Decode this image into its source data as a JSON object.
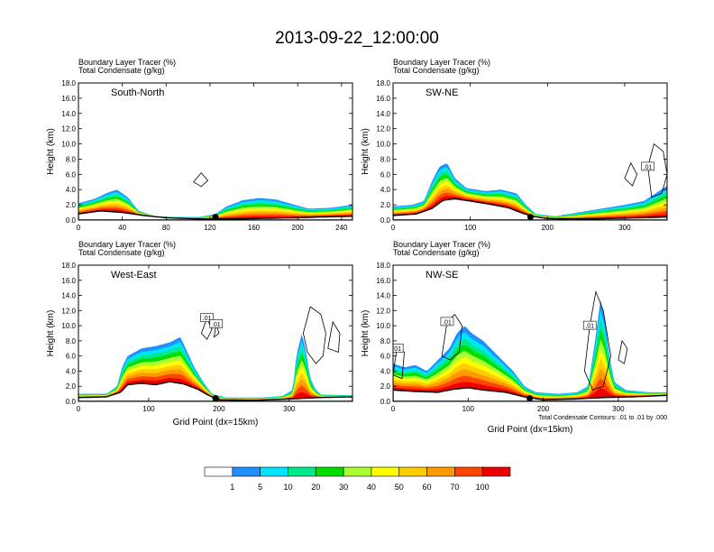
{
  "figure_title": "2013-09-22_12:00:00",
  "footnote": "Total Condensate Contours: .01 to .01 by .000",
  "chart_data": [
    {
      "type": "heatmap",
      "panel": "South-North",
      "subtitle_1": "Boundary Layer Tracer   (%)",
      "subtitle_2": "Total Condensate   (g/kg)",
      "ylabel": "Height (km)",
      "xlabel": "",
      "xlim": [
        0,
        250
      ],
      "ylim": [
        0,
        18
      ],
      "x_ticks": [
        "0",
        "40",
        "80",
        "120",
        "160",
        "200",
        "240"
      ],
      "y_ticks": [
        "0.0",
        "2.0",
        "4.0",
        "6.0",
        "8.0",
        "10.0",
        "12.0",
        "14.0",
        "16.0",
        "18.0"
      ],
      "center_marker_x": 125,
      "contour_labels": [],
      "terrain": [
        [
          0,
          0.8
        ],
        [
          20,
          1.2
        ],
        [
          40,
          1.0
        ],
        [
          60,
          0.6
        ],
        [
          80,
          0.3
        ],
        [
          100,
          0.2
        ],
        [
          120,
          0.15
        ],
        [
          140,
          0.15
        ],
        [
          160,
          0.2
        ],
        [
          180,
          0.25
        ],
        [
          200,
          0.3
        ],
        [
          220,
          0.4
        ],
        [
          250,
          0.5
        ]
      ],
      "pbl_top": [
        [
          0,
          2.2
        ],
        [
          15,
          2.8
        ],
        [
          25,
          3.5
        ],
        [
          35,
          4.0
        ],
        [
          45,
          3.0
        ],
        [
          55,
          1.2
        ],
        [
          70,
          0.5
        ],
        [
          90,
          0.4
        ],
        [
          110,
          0.4
        ],
        [
          125,
          0.8
        ],
        [
          135,
          1.8
        ],
        [
          150,
          2.6
        ],
        [
          165,
          2.9
        ],
        [
          180,
          2.7
        ],
        [
          195,
          2.1
        ],
        [
          210,
          1.5
        ],
        [
          230,
          1.6
        ],
        [
          250,
          2.0
        ]
      ],
      "cloud_contours": [
        [
          [
            105,
            5.0
          ],
          [
            112,
            6.2
          ],
          [
            118,
            5.2
          ],
          [
            112,
            4.4
          ]
        ]
      ]
    },
    {
      "type": "heatmap",
      "panel": "SW-NE",
      "subtitle_1": "Boundary Layer Tracer   (%)",
      "subtitle_2": "Total Condensate   (g/kg)",
      "ylabel": "Height (km)",
      "xlabel": "",
      "xlim": [
        0,
        355
      ],
      "ylim": [
        0,
        18
      ],
      "x_ticks": [
        "0",
        "100",
        "200",
        "300"
      ],
      "y_ticks": [
        "0.0",
        "2.0",
        "4.0",
        "6.0",
        "8.0",
        "10.0",
        "12.0",
        "14.0",
        "16.0",
        "18.0"
      ],
      "center_marker_x": 178,
      "contour_labels": [
        ".01"
      ],
      "terrain": [
        [
          0,
          0.6
        ],
        [
          30,
          0.8
        ],
        [
          50,
          1.5
        ],
        [
          65,
          2.6
        ],
        [
          80,
          2.8
        ],
        [
          100,
          2.5
        ],
        [
          130,
          2.0
        ],
        [
          150,
          1.6
        ],
        [
          165,
          1.0
        ],
        [
          180,
          0.5
        ],
        [
          200,
          0.2
        ],
        [
          240,
          0.15
        ],
        [
          280,
          0.2
        ],
        [
          320,
          0.3
        ],
        [
          355,
          0.4
        ]
      ],
      "pbl_top": [
        [
          0,
          1.8
        ],
        [
          25,
          2.0
        ],
        [
          40,
          2.5
        ],
        [
          50,
          5.0
        ],
        [
          60,
          7.0
        ],
        [
          70,
          7.5
        ],
        [
          80,
          5.5
        ],
        [
          95,
          4.2
        ],
        [
          120,
          3.8
        ],
        [
          140,
          4.0
        ],
        [
          160,
          3.5
        ],
        [
          172,
          2.0
        ],
        [
          185,
          0.8
        ],
        [
          210,
          0.5
        ],
        [
          240,
          1.0
        ],
        [
          270,
          1.5
        ],
        [
          300,
          2.0
        ],
        [
          325,
          2.5
        ],
        [
          340,
          3.5
        ],
        [
          355,
          4.5
        ]
      ],
      "cloud_contours": [
        [
          [
            335,
            3.0
          ],
          [
            330,
            7.0
          ],
          [
            338,
            10.0
          ],
          [
            350,
            9.0
          ],
          [
            355,
            6.0
          ],
          [
            348,
            3.5
          ]
        ],
        [
          [
            300,
            5.5
          ],
          [
            308,
            7.5
          ],
          [
            316,
            6.0
          ],
          [
            310,
            4.5
          ]
        ]
      ]
    },
    {
      "type": "heatmap",
      "panel": "West-East",
      "subtitle_1": "Boundary Layer Tracer   (%)",
      "subtitle_2": "Total Condensate   (g/kg)",
      "ylabel": "Height (km)",
      "xlabel": "Grid Point (dx=15km)",
      "xlim": [
        0,
        390
      ],
      "ylim": [
        0,
        18
      ],
      "x_ticks": [
        "0",
        "100",
        "200",
        "300"
      ],
      "y_ticks": [
        "0.0",
        "2.0",
        "4.0",
        "6.0",
        "8.0",
        "10.0",
        "12.0",
        "14.0",
        "16.0",
        "18.0"
      ],
      "center_marker_x": 195,
      "contour_labels": [
        ".01",
        ".01"
      ],
      "terrain": [
        [
          0,
          0.5
        ],
        [
          40,
          0.6
        ],
        [
          60,
          1.2
        ],
        [
          70,
          2.2
        ],
        [
          90,
          2.4
        ],
        [
          110,
          2.2
        ],
        [
          130,
          2.6
        ],
        [
          150,
          2.3
        ],
        [
          170,
          1.6
        ],
        [
          185,
          0.8
        ],
        [
          200,
          0.2
        ],
        [
          250,
          0.15
        ],
        [
          300,
          0.3
        ],
        [
          340,
          0.5
        ],
        [
          390,
          0.6
        ]
      ],
      "pbl_top": [
        [
          0,
          1.0
        ],
        [
          40,
          1.0
        ],
        [
          55,
          2.0
        ],
        [
          62,
          4.5
        ],
        [
          70,
          6.0
        ],
        [
          90,
          7.0
        ],
        [
          110,
          7.3
        ],
        [
          130,
          7.8
        ],
        [
          145,
          8.5
        ],
        [
          155,
          6.5
        ],
        [
          165,
          4.5
        ],
        [
          178,
          2.5
        ],
        [
          190,
          1.0
        ],
        [
          210,
          0.5
        ],
        [
          260,
          0.5
        ],
        [
          290,
          0.7
        ],
        [
          305,
          1.5
        ],
        [
          310,
          6.0
        ],
        [
          318,
          9.0
        ],
        [
          324,
          6.5
        ],
        [
          330,
          3.0
        ],
        [
          338,
          1.5
        ],
        [
          345,
          0.9
        ],
        [
          390,
          0.8
        ]
      ],
      "cloud_contours": [
        [
          [
            175,
            9.0
          ],
          [
            183,
            11.0
          ],
          [
            190,
            9.5
          ],
          [
            183,
            8.2
          ]
        ],
        [
          [
            193,
            8.5
          ],
          [
            196,
            10.2
          ],
          [
            200,
            9.0
          ]
        ],
        [
          [
            320,
            9.0
          ],
          [
            330,
            12.5
          ],
          [
            345,
            11.5
          ],
          [
            352,
            9.0
          ],
          [
            348,
            6.0
          ],
          [
            338,
            5.0
          ],
          [
            326,
            6.5
          ]
        ],
        [
          [
            355,
            7.0
          ],
          [
            362,
            10.5
          ],
          [
            372,
            9.0
          ],
          [
            370,
            6.5
          ]
        ]
      ]
    },
    {
      "type": "heatmap",
      "panel": "NW-SE",
      "subtitle_1": "Boundary Layer Tracer   (%)",
      "subtitle_2": "Total Condensate   (g/kg)",
      "ylabel": "Height (km)",
      "xlabel": "Grid Point (dx=15km)",
      "xlim": [
        0,
        365
      ],
      "ylim": [
        0,
        18
      ],
      "x_ticks": [
        "0",
        "100",
        "200",
        "300"
      ],
      "y_ticks": [
        "0.0",
        "2.0",
        "4.0",
        "6.0",
        "8.0",
        "10.0",
        "12.0",
        "14.0",
        "16.0",
        "18.0"
      ],
      "center_marker_x": 182,
      "contour_labels": [
        ".01",
        ".01",
        ".01"
      ],
      "terrain": [
        [
          0,
          1.5
        ],
        [
          30,
          1.3
        ],
        [
          60,
          1.2
        ],
        [
          80,
          1.6
        ],
        [
          100,
          1.8
        ],
        [
          120,
          1.5
        ],
        [
          150,
          1.2
        ],
        [
          175,
          0.6
        ],
        [
          200,
          0.2
        ],
        [
          240,
          0.3
        ],
        [
          280,
          0.5
        ],
        [
          320,
          0.6
        ],
        [
          365,
          0.8
        ]
      ],
      "pbl_top": [
        [
          0,
          5.0
        ],
        [
          15,
          4.5
        ],
        [
          30,
          4.8
        ],
        [
          45,
          4.0
        ],
        [
          55,
          5.0
        ],
        [
          65,
          6.0
        ],
        [
          75,
          7.0
        ],
        [
          85,
          9.0
        ],
        [
          95,
          10.0
        ],
        [
          105,
          9.0
        ],
        [
          120,
          8.0
        ],
        [
          140,
          6.0
        ],
        [
          160,
          4.0
        ],
        [
          175,
          2.0
        ],
        [
          190,
          1.2
        ],
        [
          220,
          1.0
        ],
        [
          245,
          1.2
        ],
        [
          260,
          2.0
        ],
        [
          266,
          6.0
        ],
        [
          272,
          10.0
        ],
        [
          276,
          13.5
        ],
        [
          282,
          11.0
        ],
        [
          288,
          6.0
        ],
        [
          295,
          2.5
        ],
        [
          310,
          1.5
        ],
        [
          340,
          1.2
        ],
        [
          365,
          1.2
        ]
      ],
      "cloud_contours": [
        [
          [
            65,
            6.0
          ],
          [
            72,
            10.5
          ],
          [
            82,
            11.5
          ],
          [
            92,
            10.0
          ],
          [
            88,
            6.5
          ],
          [
            76,
            5.5
          ]
        ],
        [
          [
            0,
            3.5
          ],
          [
            5,
            7.0
          ],
          [
            15,
            6.5
          ],
          [
            12,
            3.0
          ]
        ],
        [
          [
            255,
            4.0
          ],
          [
            262,
            10.0
          ],
          [
            270,
            14.5
          ],
          [
            280,
            12.0
          ],
          [
            290,
            6.0
          ],
          [
            280,
            2.0
          ],
          [
            266,
            1.5
          ]
        ],
        [
          [
            300,
            5.5
          ],
          [
            305,
            8.0
          ],
          [
            312,
            7.0
          ],
          [
            308,
            5.0
          ]
        ]
      ]
    }
  ],
  "colorbar": {
    "levels": [
      "1",
      "5",
      "10",
      "20",
      "30",
      "40",
      "50",
      "60",
      "70",
      "100"
    ],
    "colors": [
      "#ffffff",
      "#1e90ff",
      "#00e5ff",
      "#00e888",
      "#00dd00",
      "#aaff33",
      "#ffff00",
      "#ffcc00",
      "#ff9900",
      "#ff4500",
      "#ee0000"
    ]
  },
  "tracer_band_colors": [
    "#1e90ff",
    "#00e5ff",
    "#00e888",
    "#00dd00",
    "#aaff33",
    "#ffff00",
    "#ffcc00",
    "#ff9900",
    "#ff4500",
    "#ee0000"
  ]
}
